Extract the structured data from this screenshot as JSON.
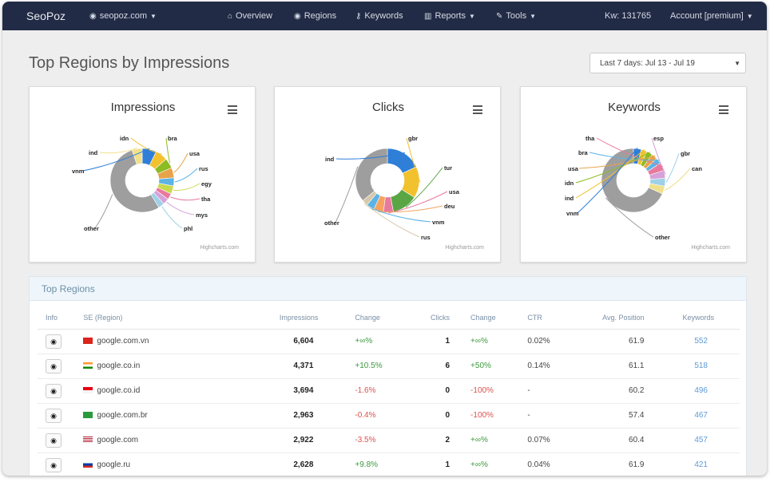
{
  "navbar": {
    "brand": "SeoPoz",
    "site": "seopoz.com",
    "items": [
      {
        "icon": "home-icon",
        "glyph": "⌂",
        "label": "Overview"
      },
      {
        "icon": "globe-icon",
        "glyph": "◉",
        "label": "Regions"
      },
      {
        "icon": "key-icon",
        "glyph": "⚷",
        "label": "Keywords"
      },
      {
        "icon": "bar-chart-icon",
        "glyph": "▥",
        "label": "Reports"
      },
      {
        "icon": "wrench-icon",
        "glyph": "✎",
        "label": "Tools"
      }
    ],
    "kw": "Kw: 131765",
    "account": "Account [premium]"
  },
  "page": {
    "title": "Top Regions by Impressions",
    "date_range": "Last 7 days: Jul 13 - Jul 19"
  },
  "charts": [
    {
      "title": "Impressions",
      "credit": "Highcharts.com",
      "labels": [
        "idn",
        "bra",
        "usa",
        "ind",
        "vnm",
        "rus",
        "egy",
        "tha",
        "mys",
        "phl",
        "other"
      ]
    },
    {
      "title": "Clicks",
      "credit": "Highcharts.com",
      "labels": [
        "gbr",
        "ind",
        "tur",
        "usa",
        "deu",
        "vnm",
        "rus",
        "other"
      ]
    },
    {
      "title": "Keywords",
      "credit": "Highcharts.com",
      "labels": [
        "tha",
        "esp",
        "bra",
        "gbr",
        "usa",
        "can",
        "idn",
        "ind",
        "vnm",
        "other"
      ]
    }
  ],
  "chart_data": [
    {
      "type": "pie",
      "title": "Impressions",
      "categories": [
        "vnm",
        "idn",
        "bra",
        "usa",
        "rus",
        "egy",
        "tha",
        "mys",
        "phl",
        "other",
        "ind"
      ],
      "values": [
        7,
        6,
        5,
        5,
        4,
        4,
        3,
        3,
        3,
        52,
        5
      ],
      "colors": [
        "#2f7ed8",
        "#f2c12e",
        "#8bbc21",
        "#e8a34a",
        "#5cb3e6",
        "#c9d94c",
        "#e87a9e",
        "#d6a1d9",
        "#9fd0e8",
        "#9e9e9e",
        "#f0e08a"
      ]
    },
    {
      "type": "pie",
      "title": "Clicks",
      "categories": [
        "ind",
        "gbr",
        "tur",
        "usa",
        "deu",
        "vnm",
        "rus",
        "other"
      ],
      "values": [
        18,
        16,
        13,
        5,
        5,
        4,
        3,
        36
      ],
      "colors": [
        "#2f7ed8",
        "#f2c12e",
        "#5aa544",
        "#e87a9e",
        "#f4a460",
        "#5cb3e6",
        "#d6c8a8",
        "#9e9e9e"
      ]
    },
    {
      "type": "pie",
      "title": "Keywords",
      "categories": [
        "vnm",
        "ind",
        "idn",
        "usa",
        "bra",
        "tha",
        "esp",
        "gbr",
        "can",
        "other"
      ],
      "values": [
        4,
        3,
        3,
        3,
        3,
        4,
        4,
        4,
        4,
        68
      ],
      "colors": [
        "#2f7ed8",
        "#f2c12e",
        "#8bbc21",
        "#e8a34a",
        "#5cb3e6",
        "#e87a9e",
        "#d6a1d9",
        "#9fd0e8",
        "#f0e08a",
        "#9e9e9e"
      ]
    }
  ],
  "table": {
    "heading": "Top Regions",
    "columns": [
      "Info",
      "SE (Region)",
      "Impressions",
      "Change",
      "Clicks",
      "Change",
      "CTR",
      "Avg. Position",
      "Keywords"
    ],
    "rows": [
      {
        "se": "google.com.vn",
        "flag": "vn",
        "impressions": "6,604",
        "change": "+∞%",
        "change_sign": "pos",
        "clicks": "1",
        "clicks_change": "+∞%",
        "clicks_change_sign": "pos",
        "ctr": "0.02%",
        "position": "61.9",
        "keywords": "552"
      },
      {
        "se": "google.co.in",
        "flag": "in",
        "impressions": "4,371",
        "change": "+10.5%",
        "change_sign": "pos",
        "clicks": "6",
        "clicks_change": "+50%",
        "clicks_change_sign": "pos",
        "ctr": "0.14%",
        "position": "61.1",
        "keywords": "518"
      },
      {
        "se": "google.co.id",
        "flag": "id",
        "impressions": "3,694",
        "change": "-1.6%",
        "change_sign": "neg",
        "clicks": "0",
        "clicks_change": "-100%",
        "clicks_change_sign": "neg",
        "ctr": "-",
        "position": "60.2",
        "keywords": "496"
      },
      {
        "se": "google.com.br",
        "flag": "br",
        "impressions": "2,963",
        "change": "-0.4%",
        "change_sign": "neg",
        "clicks": "0",
        "clicks_change": "-100%",
        "clicks_change_sign": "neg",
        "ctr": "-",
        "position": "57.4",
        "keywords": "467"
      },
      {
        "se": "google.com",
        "flag": "us",
        "impressions": "2,922",
        "change": "-3.5%",
        "change_sign": "neg",
        "clicks": "2",
        "clicks_change": "+∞%",
        "clicks_change_sign": "pos",
        "ctr": "0.07%",
        "position": "60.4",
        "keywords": "457"
      },
      {
        "se": "google.ru",
        "flag": "ru",
        "impressions": "2,628",
        "change": "+9.8%",
        "change_sign": "pos",
        "clicks": "1",
        "clicks_change": "+∞%",
        "clicks_change_sign": "pos",
        "ctr": "0.04%",
        "position": "61.9",
        "keywords": "421"
      }
    ]
  }
}
